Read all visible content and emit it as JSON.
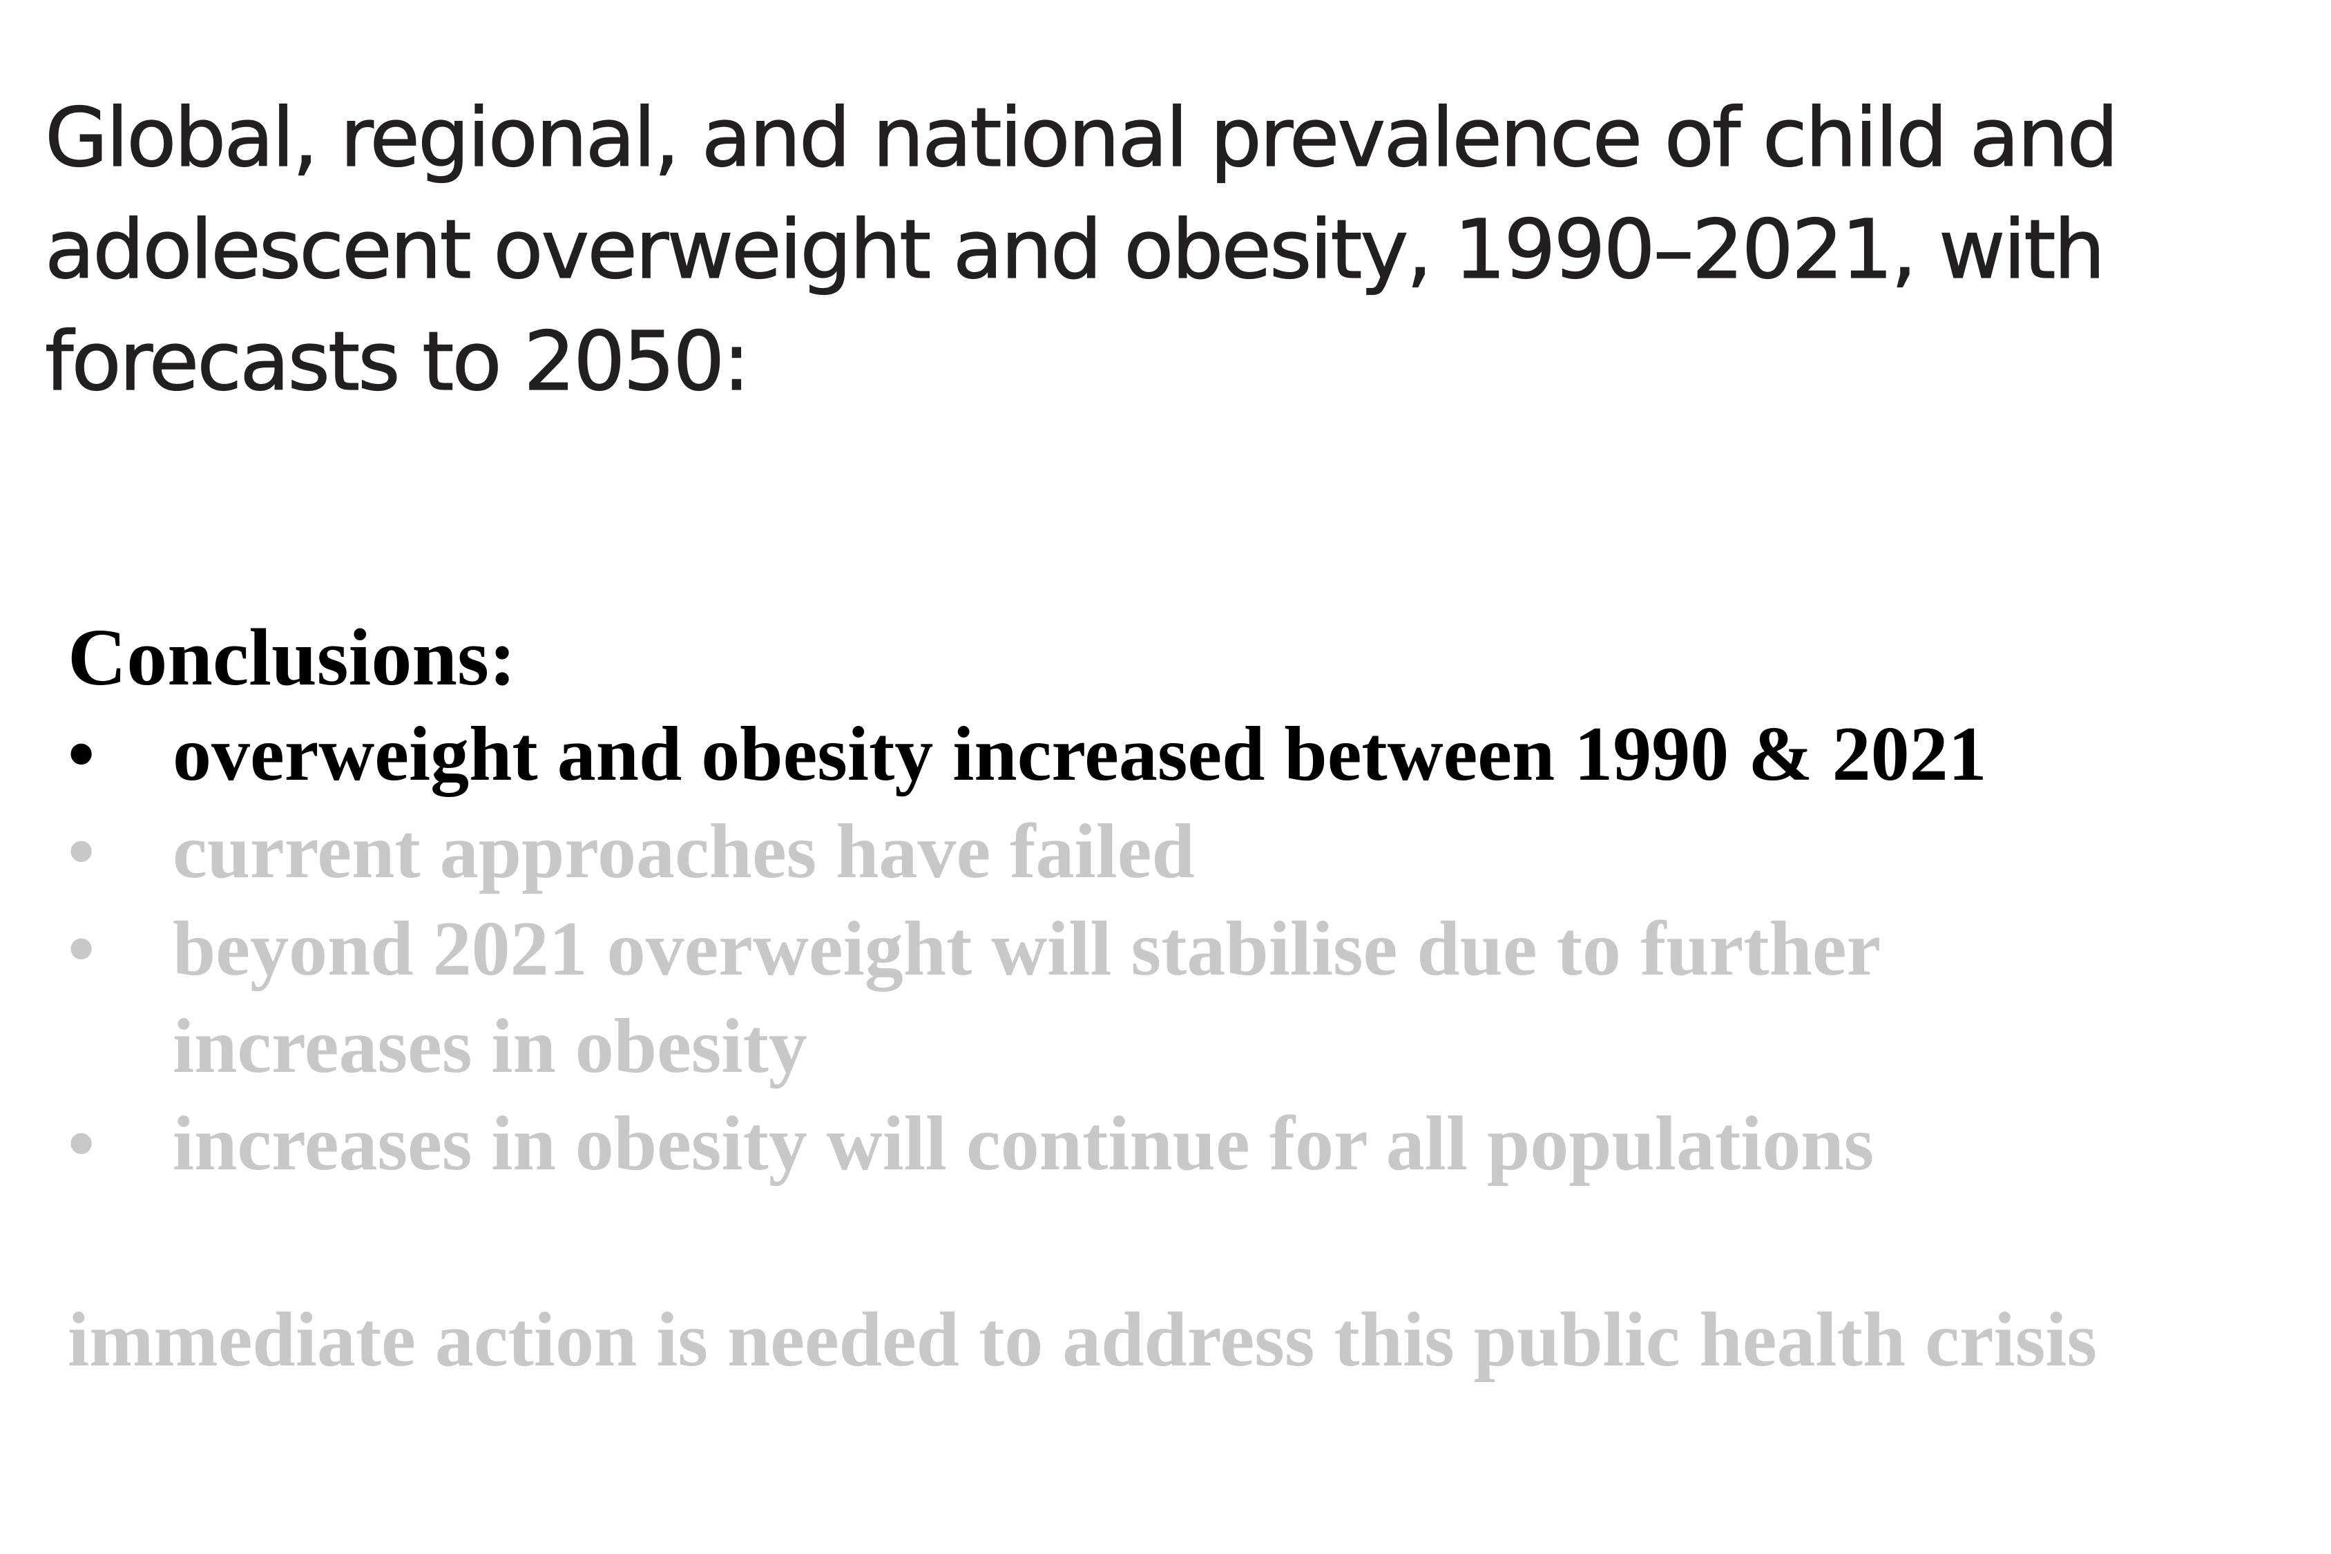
{
  "title": {
    "lines": [
      "Global, regional, and national prevalence of child and",
      "adolescent overweight and obesity, 1990–2021, with",
      "forecasts to 2050:"
    ]
  },
  "conclusions": {
    "heading": "Conclusions:",
    "bullet_marker": "•",
    "items": [
      {
        "lines": [
          "overweight and obesity increased between 1990 & 2021"
        ],
        "state": "active",
        "color": "#000000"
      },
      {
        "lines": [
          "current approaches have failed"
        ],
        "state": "dim",
        "color": "#c8c8c8"
      },
      {
        "lines": [
          "beyond 2021 overweight will stabilise due to further",
          "increases in obesity"
        ],
        "state": "dim",
        "color": "#c8c8c8"
      },
      {
        "lines": [
          "increases in obesity will continue for all populations"
        ],
        "state": "dim",
        "color": "#c8c8c8"
      }
    ]
  },
  "closing": {
    "text": "immediate action is needed to address this public health crisis",
    "state": "dim",
    "color": "#c8c8c8"
  },
  "colors": {
    "title_text": "#231f20",
    "active_text": "#000000",
    "dimmed_text": "#c8c8c8",
    "background": "#ffffff"
  }
}
